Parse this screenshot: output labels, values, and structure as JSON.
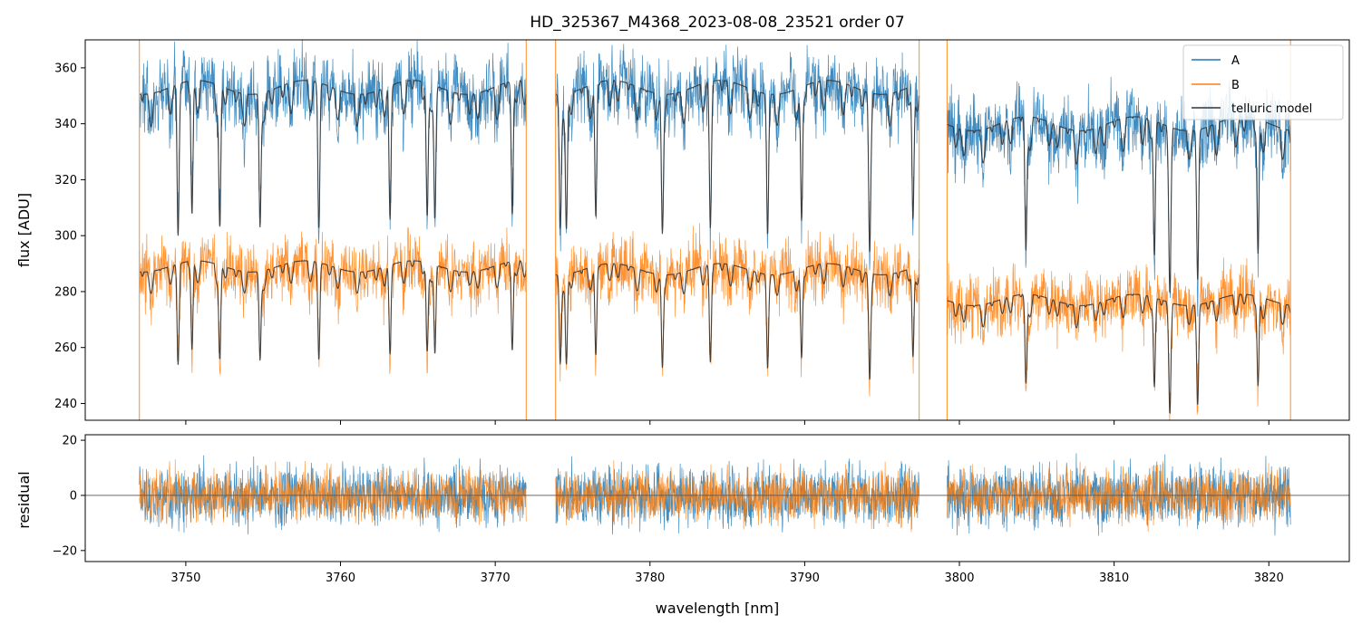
{
  "chart_data": {
    "type": "line",
    "title": "HD_325367_M4368_2023-08-08_23521  order 07",
    "xlabel": "wavelength [nm]",
    "xlim": [
      3743.5,
      3825.2
    ],
    "xticks": [
      3750,
      3760,
      3770,
      3780,
      3790,
      3800,
      3810,
      3820
    ],
    "segments": [
      [
        3747.0,
        3772.0
      ],
      [
        3773.9,
        3797.4
      ],
      [
        3799.2,
        3821.4
      ]
    ],
    "panels": [
      {
        "name": "flux",
        "ylabel": "flux [ADU]",
        "ylim": [
          234,
          370
        ],
        "yticks": [
          240,
          260,
          280,
          300,
          320,
          340,
          360
        ],
        "legend": {
          "placement": "top-right",
          "entries": [
            "A",
            "B",
            "telluric model"
          ]
        },
        "series": [
          {
            "name": "A",
            "color": "#1f77b4",
            "segment_continuum": [
              353,
              353,
              340
            ],
            "noise_amplitude": 9
          },
          {
            "name": "B",
            "color": "#ff7f0e",
            "segment_continuum": [
              289,
              288,
              277
            ],
            "noise_amplitude": 8
          },
          {
            "name": "telluric model",
            "color": "#333333"
          }
        ],
        "absorption_lines_nm": [
          3749.5,
          3750.4,
          3752.2,
          3754.8,
          3758.6,
          3763.2,
          3765.6,
          3766.1,
          3771.1,
          3774.2,
          3774.6,
          3776.5,
          3780.8,
          3783.9,
          3787.6,
          3789.8,
          3794.2,
          3797.0,
          3804.3,
          3812.6,
          3813.6,
          3815.4,
          3819.3
        ]
      },
      {
        "name": "residual",
        "ylabel": "residual",
        "ylim": [
          -24,
          22
        ],
        "yticks": [
          -20,
          0,
          20
        ],
        "zero_line": 0,
        "series": [
          {
            "name": "A",
            "color": "#1f77b4",
            "noise_amplitude": 8
          },
          {
            "name": "B",
            "color": "#ff7f0e",
            "noise_amplitude": 7
          }
        ]
      }
    ]
  }
}
